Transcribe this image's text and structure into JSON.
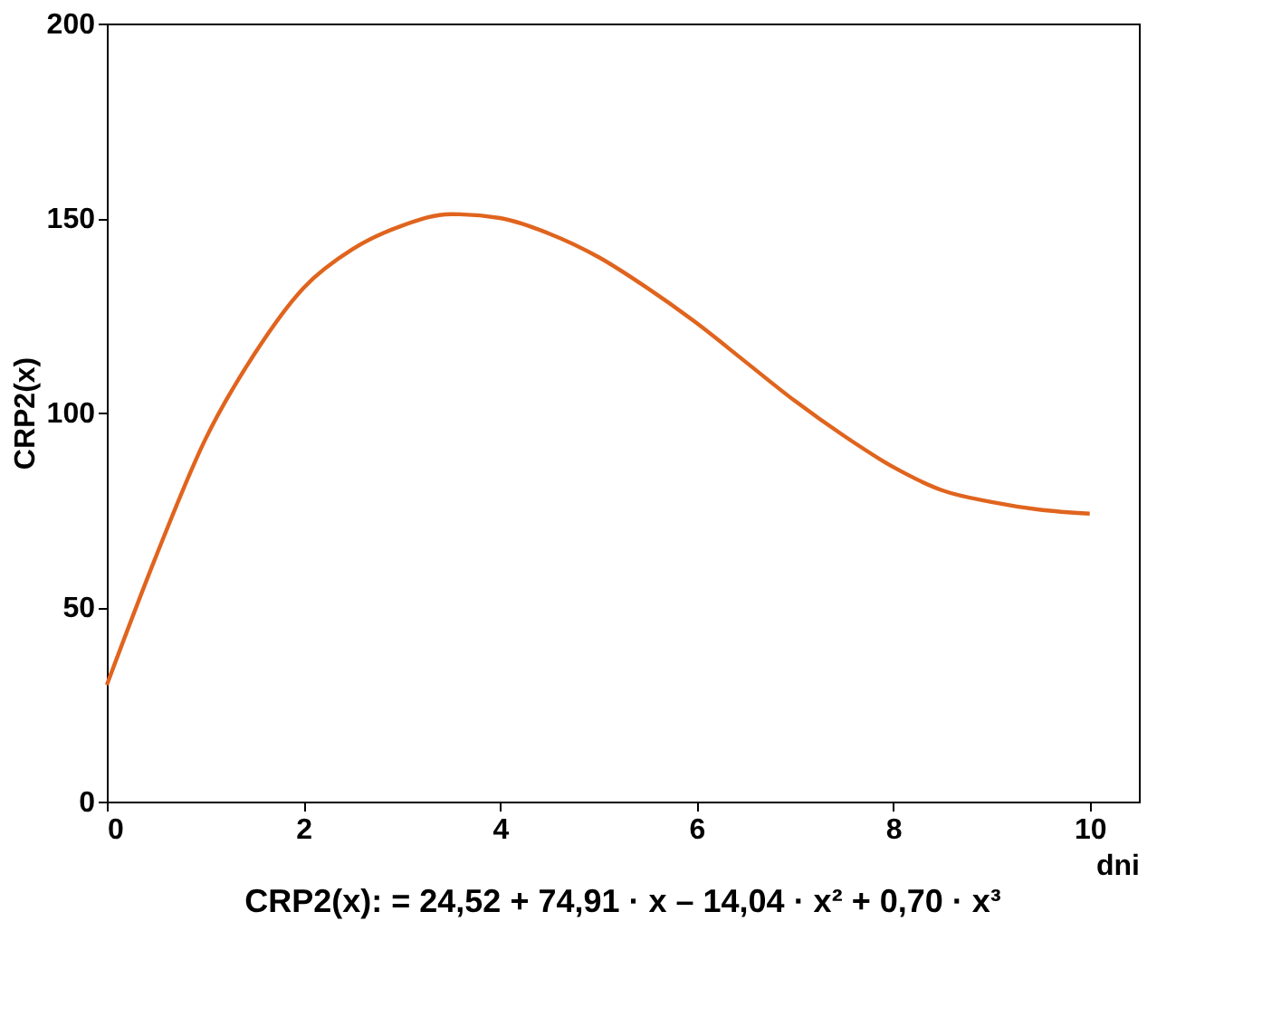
{
  "chart_data": {
    "type": "line",
    "xlabel": "dni",
    "ylabel": "CRP2(x)",
    "annotations": [
      "CRP2(x): = 24,52 + 74,91 · x – 14,04 · x² + 0,70 · x³"
    ],
    "x": [
      0,
      0.5,
      1,
      1.5,
      2,
      2.5,
      3,
      3.5,
      4,
      4.5,
      5,
      5.5,
      6,
      6.5,
      7,
      7.5,
      8,
      8.5,
      9,
      9.5,
      10
    ],
    "series": [
      {
        "color": "#e0641e",
        "values": [
          30,
          63,
          93,
          115,
          132,
          142,
          148,
          151,
          150,
          146,
          140,
          132,
          123,
          113,
          103,
          94,
          86,
          80,
          77,
          75,
          74
        ]
      }
    ],
    "xlim": [
      0,
      10.5
    ],
    "ylim": [
      0,
      200
    ],
    "xticks": [
      0,
      2,
      4,
      6,
      8,
      10
    ],
    "yticks": [
      0,
      50,
      100,
      150,
      200
    ],
    "grid": false,
    "marker": "none",
    "line_style": "solid"
  }
}
